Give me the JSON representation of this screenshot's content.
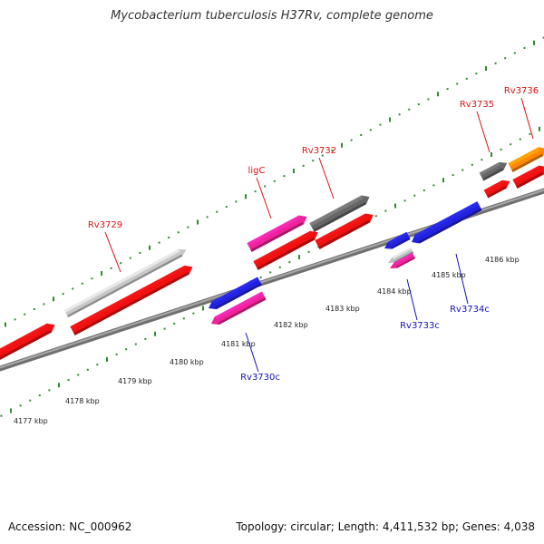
{
  "title": "Mycobacterium tuberculosis H37Rv, complete genome",
  "footer": {
    "accession": "Accession: NC_000962",
    "summary": "Topology: circular; Length: 4,411,532 bp; Genes: 4,038"
  },
  "colors": {
    "backbone": "#8c8c8c",
    "tick": "#2e8b2e",
    "forward_label": "#dd1111",
    "reverse_label": "#1111bb",
    "tick_label": "#222222"
  },
  "scale_labels": [
    "4177 kbp",
    "4178 kbp",
    "4179 kbp",
    "4180 kbp",
    "4181 kbp",
    "4182 kbp",
    "4183 kbp",
    "4184 kbp",
    "4185 kbp",
    "4186 kbp"
  ],
  "forward_genes": [
    {
      "label": "",
      "color": "#ee1111"
    },
    {
      "label": "Rv3729",
      "color": "#ee1111"
    },
    {
      "label": "",
      "color": "#c8c8c8"
    },
    {
      "label": "ligC",
      "color": "#ee1111"
    },
    {
      "label": "",
      "color": "#ee2299"
    },
    {
      "label": "Rv3732",
      "color": "#ee1111"
    },
    {
      "label": "",
      "color": "#666666"
    },
    {
      "label": "Rv3735",
      "color": "#666666"
    },
    {
      "label": "",
      "color": "#ee1111"
    },
    {
      "label": "Rv3736",
      "color": "#ff8800"
    },
    {
      "label": "",
      "color": "#ee1111"
    }
  ],
  "reverse_genes": [
    {
      "label": "Rv3730c",
      "color": "#2222dd"
    },
    {
      "label": "",
      "color": "#ee2299"
    },
    {
      "label": "Rv3733c",
      "color": "#2222dd"
    },
    {
      "label": "",
      "color": "#c0c0c0"
    },
    {
      "label": "",
      "color": "#ee2299"
    },
    {
      "label": "Rv3734c",
      "color": "#2222dd"
    }
  ]
}
